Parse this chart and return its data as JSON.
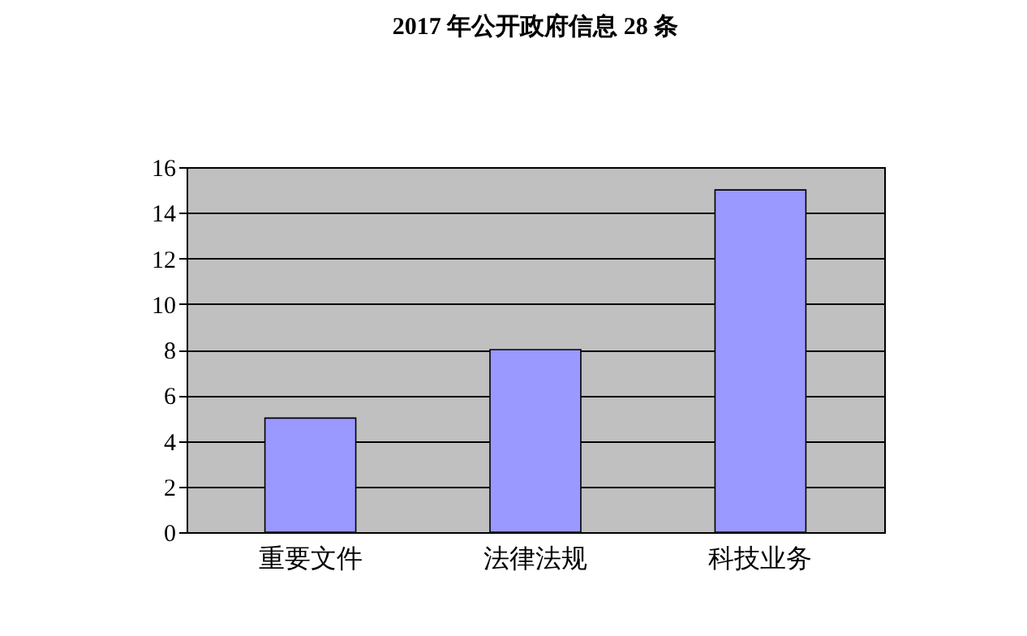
{
  "chart_data": {
    "type": "bar",
    "title": "2017 年公开政府信息 28 条",
    "categories": [
      "重要文件",
      "法律法规",
      "科技业务"
    ],
    "values": [
      5,
      8,
      15
    ],
    "color": "#9999ff",
    "ylim": [
      0,
      16
    ],
    "yticks": [
      0,
      2,
      4,
      6,
      8,
      10,
      12,
      14,
      16
    ],
    "grid": "y"
  }
}
